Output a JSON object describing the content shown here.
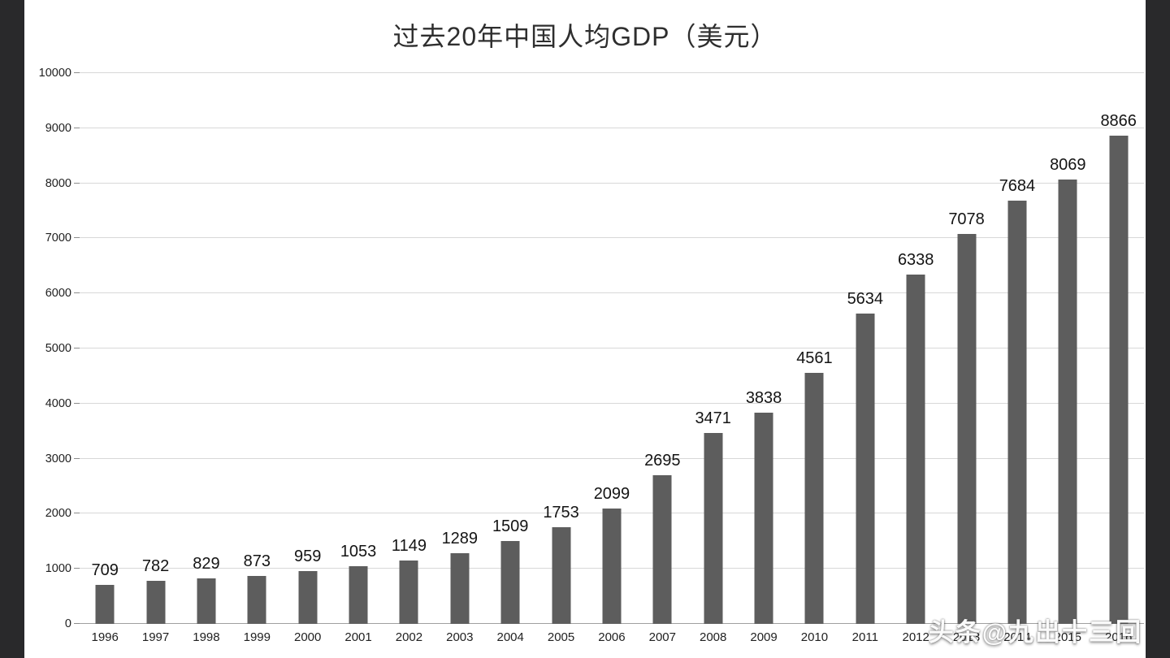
{
  "page": {
    "watermark": "头条@九出十三回"
  },
  "chart_data": {
    "type": "bar",
    "title": "过去20年中国人均GDP（美元）",
    "categories": [
      "1996",
      "1997",
      "1998",
      "1999",
      "2000",
      "2001",
      "2002",
      "2003",
      "2004",
      "2005",
      "2006",
      "2007",
      "2008",
      "2009",
      "2010",
      "2011",
      "2012",
      "2013",
      "2014",
      "2015",
      "2016"
    ],
    "values": [
      709,
      782,
      829,
      873,
      959,
      1053,
      1149,
      1289,
      1509,
      1753,
      2099,
      2695,
      3471,
      3838,
      4561,
      5634,
      6338,
      7078,
      7684,
      8069,
      8866
    ],
    "xlabel": "",
    "ylabel": "",
    "ylim": [
      0,
      10000
    ],
    "ytick_step": 1000,
    "grid": true,
    "legend": "none",
    "value_labels": true,
    "bar_color": "#5d5d5d"
  }
}
